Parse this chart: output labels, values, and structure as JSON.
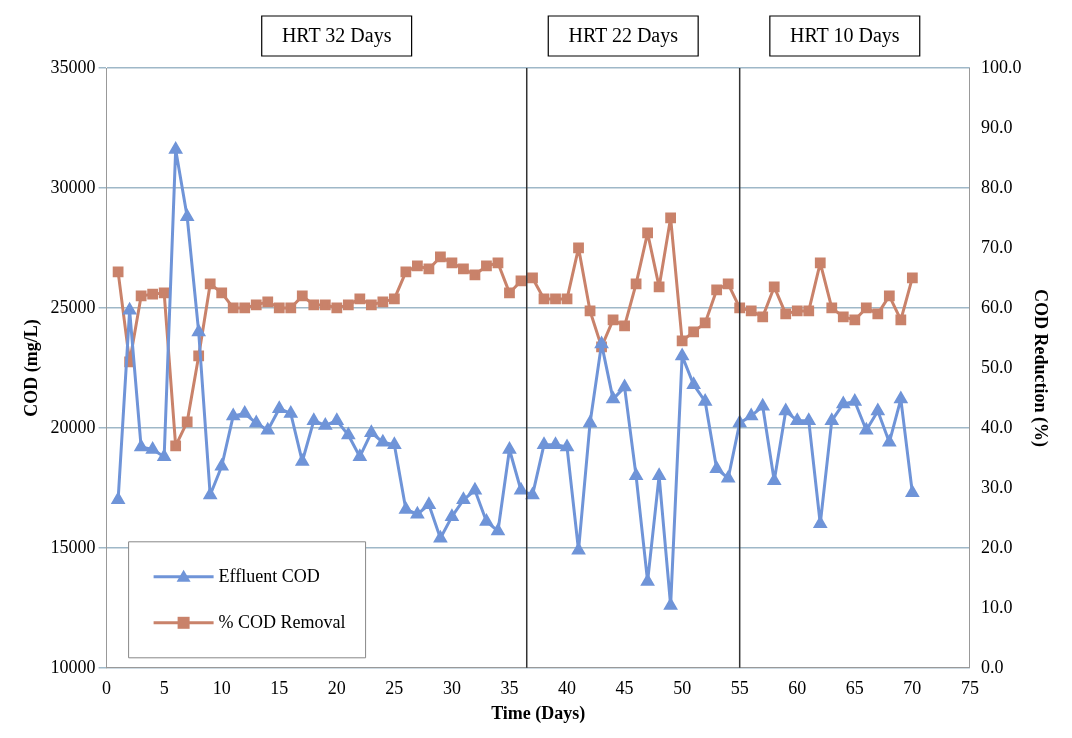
{
  "chart_data": {
    "type": "line",
    "xlabel": "Time (Days)",
    "ylabel": "COD (mg/L)",
    "y2label": "COD Reduction (%)",
    "x": [
      1,
      2,
      3,
      4,
      5,
      6,
      7,
      8,
      9,
      10,
      11,
      12,
      13,
      14,
      15,
      16,
      17,
      18,
      19,
      20,
      21,
      22,
      23,
      24,
      25,
      26,
      27,
      28,
      29,
      30,
      31,
      32,
      33,
      34,
      35,
      36,
      37,
      38,
      39,
      40,
      41,
      42,
      43,
      44,
      45,
      46,
      47,
      48,
      49,
      50,
      51,
      52,
      53,
      54,
      55,
      56,
      57,
      58,
      59,
      60,
      61,
      62,
      63,
      64,
      65,
      66,
      67,
      68,
      69,
      70
    ],
    "series": [
      {
        "name": "Effluent COD",
        "color": "#6f94d8",
        "marker": "triangle",
        "values": [
          17000,
          24900,
          19200,
          19100,
          18800,
          31600,
          28800,
          24000,
          17200,
          18400,
          20500,
          20600,
          20200,
          19900,
          20800,
          20600,
          18600,
          20300,
          20100,
          20300,
          19700,
          18800,
          19800,
          19400,
          19300,
          16600,
          16400,
          16800,
          15400,
          16300,
          17000,
          17400,
          16100,
          15700,
          19100,
          17400,
          17200,
          19300,
          19300,
          19200,
          14900,
          20200,
          23500,
          21200,
          21700,
          18000,
          13600,
          18000,
          12600,
          23000,
          21800,
          21100,
          18300,
          17900,
          20200,
          20500,
          20900,
          17800,
          20700,
          20300,
          20300,
          16000,
          20300,
          21000,
          21100,
          19900,
          20700,
          19400,
          21200,
          17300
        ]
      },
      {
        "name": "% COD Removal",
        "color": "#c9826a",
        "marker": "square",
        "axis": "y2",
        "values": [
          66,
          51,
          62,
          62.3,
          62.5,
          37,
          41,
          52,
          64,
          62.5,
          60,
          60,
          60.5,
          61,
          60,
          60,
          62,
          60.5,
          60.5,
          60,
          60.5,
          61.5,
          60.5,
          61,
          61.5,
          66,
          67,
          66.5,
          68.5,
          67.5,
          66.5,
          65.5,
          67,
          67.5,
          62.5,
          64.5,
          65,
          61.5,
          61.5,
          61.5,
          70,
          59.5,
          53.5,
          58,
          57,
          64,
          72.5,
          63.5,
          75,
          54.5,
          56,
          57.5,
          63,
          64,
          60,
          59.5,
          58.5,
          63.5,
          59,
          59.5,
          59.5,
          67.5,
          60,
          58.5,
          58,
          60,
          59,
          62,
          58,
          65
        ]
      }
    ],
    "xlim": [
      0,
      75
    ],
    "xticks": [
      0,
      5,
      10,
      15,
      20,
      25,
      30,
      35,
      40,
      45,
      50,
      55,
      60,
      65,
      70,
      75
    ],
    "ylim": [
      10000,
      35000
    ],
    "yticks": [
      10000,
      15000,
      20000,
      25000,
      30000,
      35000
    ],
    "y2lim": [
      0,
      100
    ],
    "y2ticks": [
      {
        "value": 0,
        "label": "0.0"
      },
      {
        "value": 10,
        "label": "10.0"
      },
      {
        "value": 20,
        "label": "20.0"
      },
      {
        "value": 30,
        "label": "30.0"
      },
      {
        "value": 40,
        "label": "40.0"
      },
      {
        "value": 50,
        "label": "50.0"
      },
      {
        "value": 60,
        "label": "60.0"
      },
      {
        "value": 70,
        "label": "70.0"
      },
      {
        "value": 80,
        "label": "80.0"
      },
      {
        "value": 90,
        "label": "90.0"
      },
      {
        "value": 100,
        "label": "100.0"
      }
    ],
    "ref_lines": [
      {
        "axis": "x",
        "value": 36.5,
        "color": "#333333"
      },
      {
        "axis": "x",
        "value": 55,
        "color": "#333333"
      }
    ],
    "annotations": [
      "HRT 32 Days",
      "HRT 22 Days",
      "HRT 10 Days"
    ],
    "grid": "y",
    "legend": "bottom left"
  }
}
